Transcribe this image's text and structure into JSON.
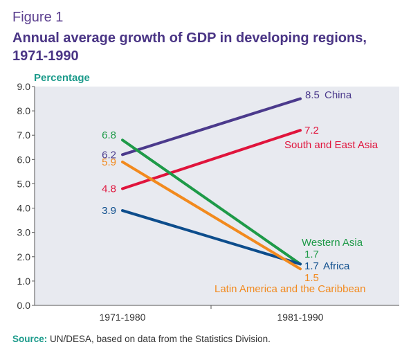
{
  "figure_label": "Figure 1",
  "title": "Annual average growth of GDP in developing regions, 1971-1990",
  "source": {
    "label": "Source:",
    "text": " UN/DESA, based on data from the Statistics Division."
  },
  "chart_data": {
    "type": "line",
    "title": "Annual average growth of GDP in developing regions, 1971-1990",
    "ylabel": "Percentage",
    "xlabel": "",
    "ylim": [
      0,
      9
    ],
    "yticks": [
      "0.0",
      "1.0",
      "2.0",
      "3.0",
      "4.0",
      "5.0",
      "6.0",
      "7.0",
      "8.0",
      "9.0"
    ],
    "categories": [
      "1971-1980",
      "1981-1990"
    ],
    "grid": false,
    "background": "#e8eaf0",
    "series": [
      {
        "name": "China",
        "values": [
          6.2,
          8.5
        ],
        "start_label": "6.2",
        "end_label": "8.5",
        "color": "#4b3a8c"
      },
      {
        "name": "South and East Asia",
        "values": [
          4.8,
          7.2
        ],
        "start_label": "4.8",
        "end_label": "7.2",
        "color": "#e0143c"
      },
      {
        "name": "Western Asia",
        "values": [
          6.8,
          1.7
        ],
        "start_label": "6.8",
        "end_label": "1.7",
        "color": "#1e9a48"
      },
      {
        "name": "Africa",
        "values": [
          3.9,
          1.7
        ],
        "start_label": "3.9",
        "end_label": "1.7",
        "color": "#0d4d8c"
      },
      {
        "name": "Latin America and the Caribbean",
        "values": [
          5.9,
          1.5
        ],
        "start_label": "5.9",
        "end_label": "1.5",
        "color": "#f28a1e"
      }
    ]
  }
}
